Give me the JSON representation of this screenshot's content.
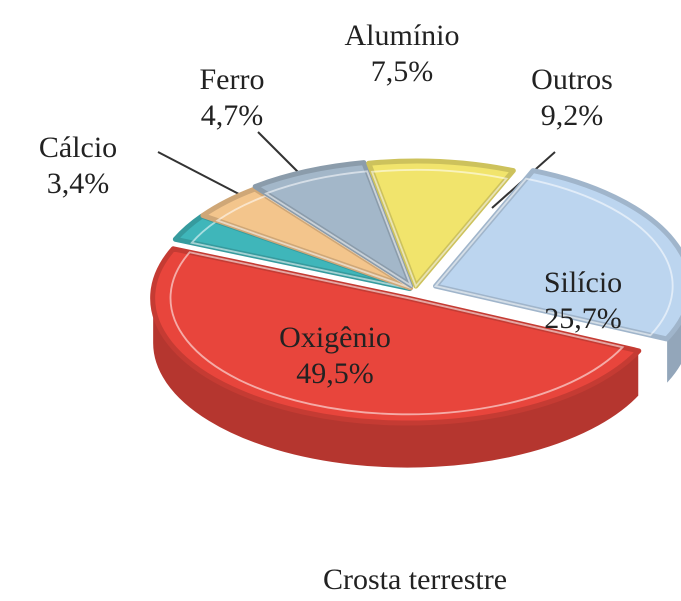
{
  "chart_data": {
    "type": "pie",
    "title": "Crosta terrestre",
    "categories": [
      "Oxigênio",
      "Cálcio",
      "Ferro",
      "Alumínio",
      "Outros",
      "Silício"
    ],
    "values": [
      49.5,
      3.4,
      4.7,
      7.5,
      9.2,
      25.7
    ],
    "value_labels": [
      "49,5%",
      "3,4%",
      "4,7%",
      "7,5%",
      "9,2%",
      "25,7%"
    ],
    "colors": [
      "#e8453c",
      "#3fb6ba",
      "#f3c58c",
      "#a3b7c9",
      "#f1e46c",
      "#bcd5ef"
    ]
  }
}
